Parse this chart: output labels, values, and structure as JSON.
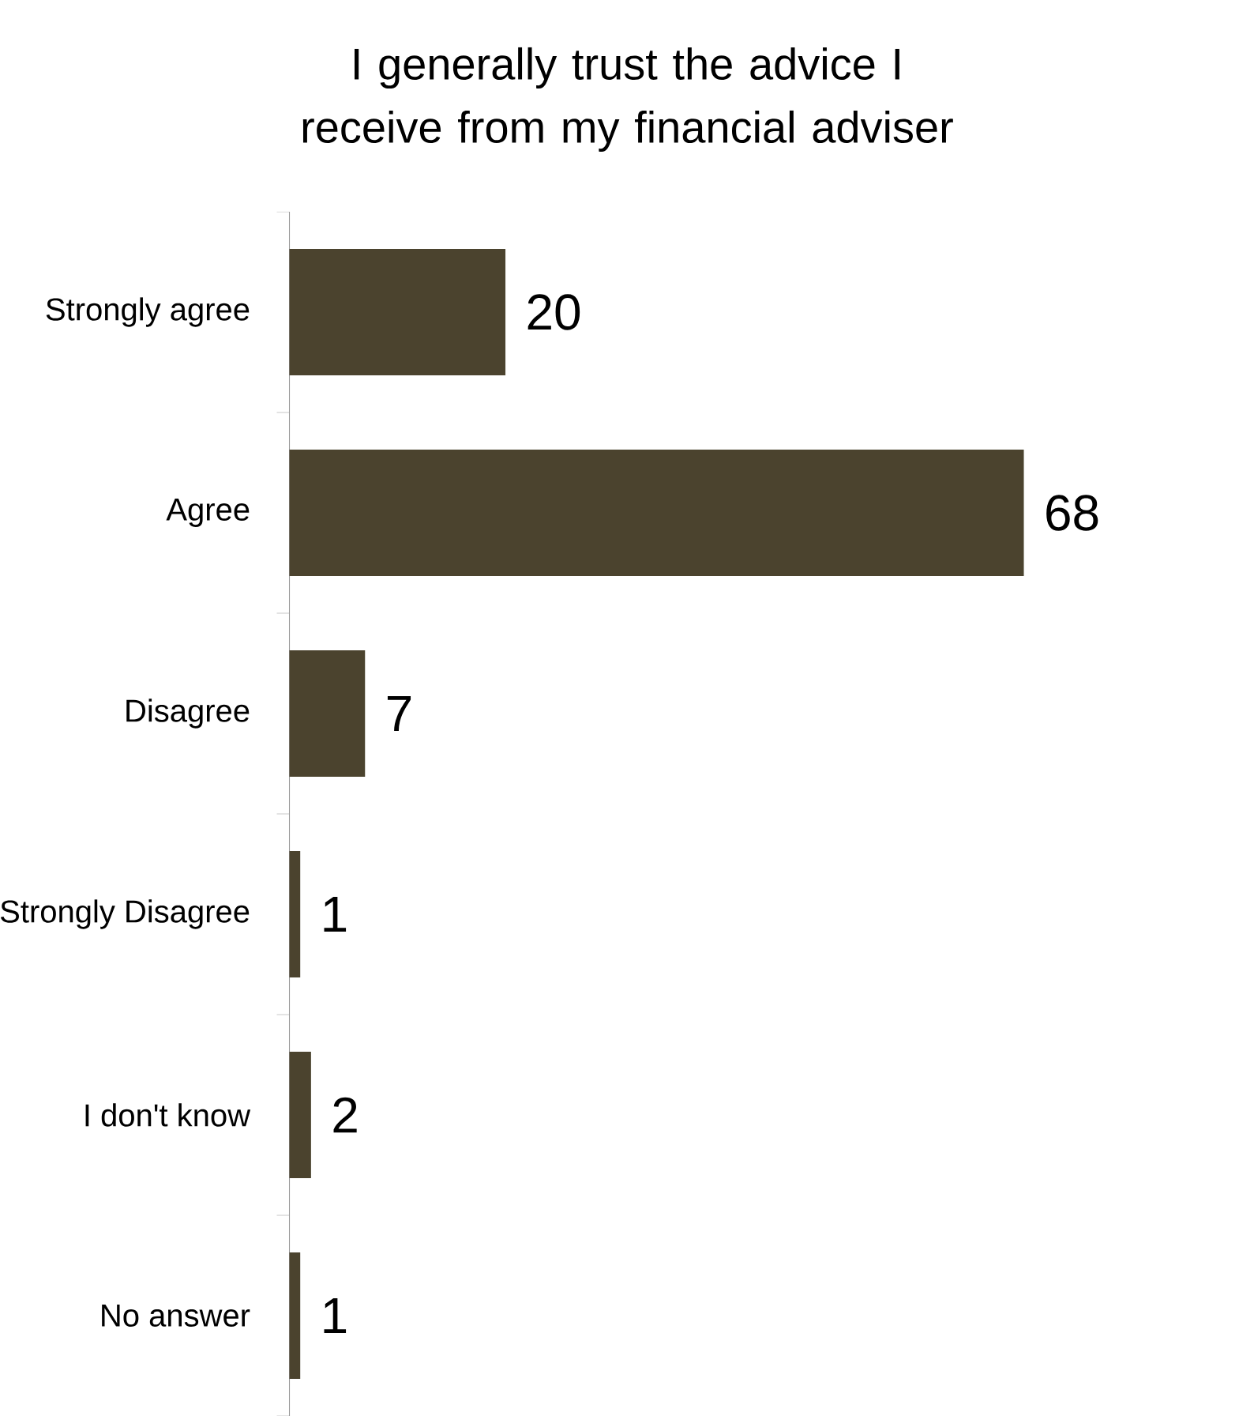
{
  "chart_data": {
    "type": "bar",
    "orientation": "horizontal",
    "title": "I generally trust the advice I receive from my financial adviser",
    "categories": [
      "Strongly agree",
      "Agree",
      "Disagree",
      "Strongly Disagree",
      "I don't know",
      "No answer"
    ],
    "values": [
      20,
      68,
      7,
      1,
      2,
      1
    ],
    "color": "#4b432e",
    "data_labels": true
  }
}
